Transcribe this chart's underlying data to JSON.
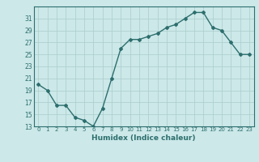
{
  "x": [
    0,
    1,
    2,
    3,
    4,
    5,
    6,
    7,
    8,
    9,
    10,
    11,
    12,
    13,
    14,
    15,
    16,
    17,
    18,
    19,
    20,
    21,
    22,
    23
  ],
  "y": [
    20,
    19,
    16.5,
    16.5,
    14.5,
    14,
    13,
    16,
    21,
    26,
    27.5,
    27.5,
    28,
    28.5,
    29.5,
    30,
    31,
    32,
    32,
    29.5,
    29,
    27,
    25,
    25
  ],
  "xlabel": "Humidex (Indice chaleur)",
  "ylim": [
    13,
    33
  ],
  "xlim": [
    -0.5,
    23.5
  ],
  "yticks": [
    13,
    15,
    17,
    19,
    21,
    23,
    25,
    27,
    29,
    31
  ],
  "xticks": [
    0,
    1,
    2,
    3,
    4,
    5,
    6,
    7,
    8,
    9,
    10,
    11,
    12,
    13,
    14,
    15,
    16,
    17,
    18,
    19,
    20,
    21,
    22,
    23
  ],
  "line_color": "#2d6e6e",
  "marker": "D",
  "marker_size": 2.0,
  "bg_color": "#cce8e8",
  "grid_color": "#aacccc",
  "fig_bg": "#cce8e8"
}
